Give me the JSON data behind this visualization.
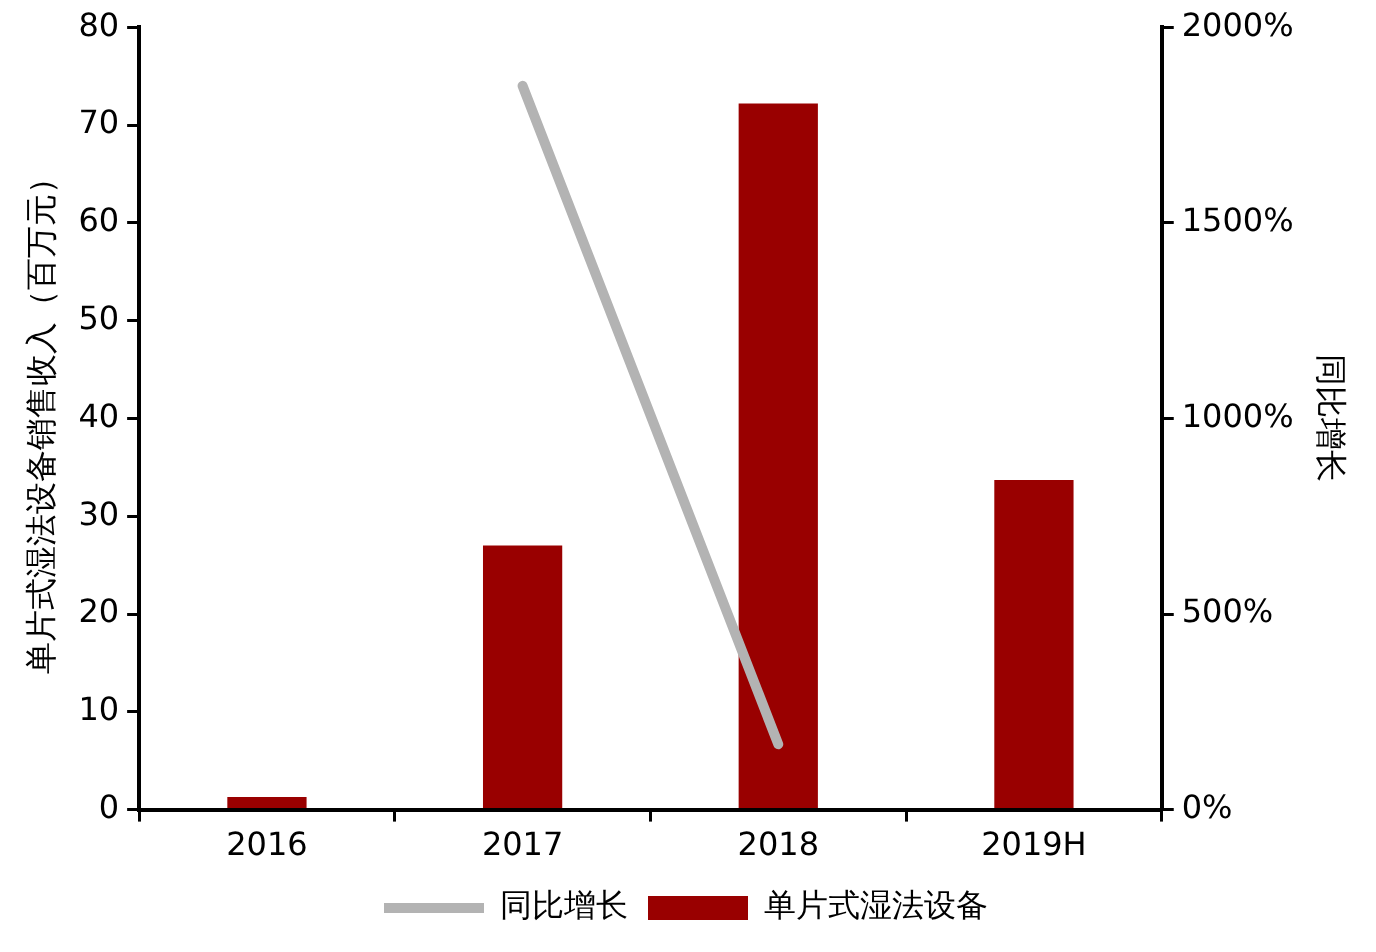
{
  "chart_data": {
    "type": "bar",
    "categories": [
      "2016",
      "2017",
      "2018",
      "2019H"
    ],
    "series": [
      {
        "name": "单片式湿法设备",
        "color": "#990000",
        "values": [
          1.3,
          27.0,
          72.2,
          33.7
        ]
      },
      {
        "name": "同比增长",
        "type": "line",
        "axis": "y2",
        "color": "#b3b3b3",
        "values": [
          null,
          1850,
          167,
          null
        ]
      }
    ],
    "ylabel": "单片式湿法设备销售收入（百万元）",
    "y2label": "同比增长",
    "ylim": [
      0,
      80
    ],
    "yticks": [
      0,
      10,
      20,
      30,
      40,
      50,
      60,
      70,
      80
    ],
    "y2lim": [
      0,
      2000
    ],
    "y2ticks": [
      {
        "value": 0,
        "label": "0%"
      },
      {
        "value": 500,
        "label": "500%"
      },
      {
        "value": 1000,
        "label": "1000%"
      },
      {
        "value": 1500,
        "label": "1500%"
      },
      {
        "value": 2000,
        "label": "2000%"
      }
    ],
    "grid": false,
    "legend": "bottom",
    "marker": "none"
  }
}
